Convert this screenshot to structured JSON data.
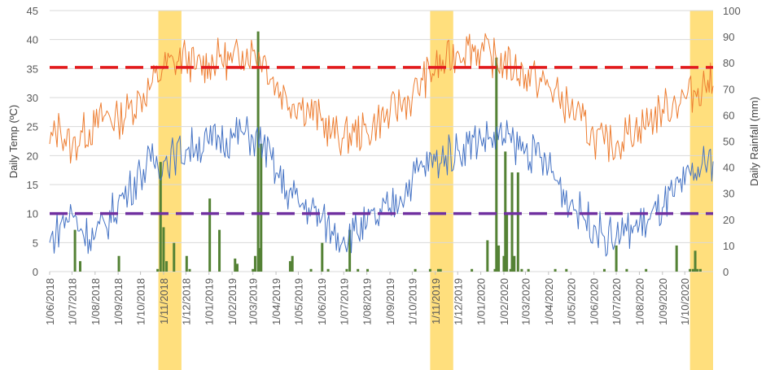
{
  "chart_data": {
    "type": "line",
    "ylabel": "Daily Temp (ºC)",
    "y2label": "Daily Rainfall (mm)",
    "ylim": [
      0,
      45
    ],
    "y2lim": [
      0,
      100
    ],
    "yticks": [
      0,
      5,
      10,
      15,
      20,
      25,
      30,
      35,
      40,
      45
    ],
    "y2ticks": [
      0,
      10,
      20,
      30,
      40,
      50,
      60,
      70,
      80,
      90,
      100
    ],
    "xlim": [
      "2018-06-01",
      "2020-11-08"
    ],
    "xtick_labels": [
      "1/06/2018",
      "1/07/2018",
      "1/08/2018",
      "1/09/2018",
      "1/10/2018",
      "1/11/2018",
      "1/12/2018",
      "1/01/2019",
      "1/02/2019",
      "1/03/2019",
      "1/04/2019",
      "1/05/2019",
      "1/06/2019",
      "1/07/2019",
      "1/08/2019",
      "1/09/2019",
      "1/10/2019",
      "1/11/2019",
      "1/12/2019",
      "1/01/2020",
      "1/02/2020",
      "1/03/2020",
      "1/04/2020",
      "1/05/2020",
      "1/06/2020",
      "1/07/2020",
      "1/08/2020",
      "1/09/2020",
      "1/10/2020"
    ],
    "grid": true,
    "highlight_periods": [
      {
        "start": "2018-10-25",
        "end": "2018-11-25",
        "color": "#FFD966"
      },
      {
        "start": "2019-10-25",
        "end": "2019-11-25",
        "color": "#FFD966"
      },
      {
        "start": "2020-10-08",
        "end": "2020-11-08",
        "color": "#FFD966"
      }
    ],
    "thresholds": [
      {
        "value": 35.2,
        "axis": "left",
        "color": "#E31A1C",
        "style": "dashed"
      },
      {
        "value": 10,
        "axis": "left",
        "color": "#7030A0",
        "style": "dashed"
      }
    ],
    "series": [
      {
        "kind": "line",
        "axis": "left",
        "color": "#ED7D31",
        "x": [
          "2018-06-01",
          "2018-06-15",
          "2018-07-01",
          "2018-07-15",
          "2018-08-01",
          "2018-08-15",
          "2018-09-01",
          "2018-09-15",
          "2018-10-01",
          "2018-10-15",
          "2018-11-01",
          "2018-11-15",
          "2018-12-01",
          "2018-12-15",
          "2019-01-01",
          "2019-01-15",
          "2019-02-01",
          "2019-02-15",
          "2019-03-01",
          "2019-03-15",
          "2019-04-01",
          "2019-04-15",
          "2019-05-01",
          "2019-05-15",
          "2019-06-01",
          "2019-06-15",
          "2019-07-01",
          "2019-07-15",
          "2019-08-01",
          "2019-08-15",
          "2019-09-01",
          "2019-09-15",
          "2019-10-01",
          "2019-10-15",
          "2019-11-01",
          "2019-11-15",
          "2019-12-01",
          "2019-12-15",
          "2020-01-01",
          "2020-01-15",
          "2020-02-01",
          "2020-02-15",
          "2020-03-01",
          "2020-03-15",
          "2020-04-01",
          "2020-04-15",
          "2020-05-01",
          "2020-05-15",
          "2020-06-01",
          "2020-06-15",
          "2020-07-01",
          "2020-07-15",
          "2020-08-01",
          "2020-08-15",
          "2020-09-01",
          "2020-09-15",
          "2020-10-01",
          "2020-10-15",
          "2020-11-01",
          "2020-11-08"
        ],
        "y": [
          22,
          25,
          21,
          24,
          25,
          27,
          26,
          28,
          30,
          32,
          35,
          36,
          37,
          35,
          36,
          37,
          36,
          38,
          38,
          37,
          32,
          30,
          29,
          28,
          26,
          24,
          23,
          24,
          24,
          26,
          27,
          29,
          30,
          33,
          35,
          36,
          38,
          39,
          38,
          37,
          36,
          35,
          34,
          33,
          32,
          30,
          28,
          26,
          23,
          22,
          22,
          24,
          25,
          26,
          28,
          29,
          30,
          31,
          33,
          32
        ]
      },
      {
        "kind": "line",
        "axis": "left",
        "color": "#4472C4",
        "x": [
          "2018-06-01",
          "2018-06-15",
          "2018-07-01",
          "2018-07-15",
          "2018-08-01",
          "2018-08-15",
          "2018-09-01",
          "2018-09-15",
          "2018-10-01",
          "2018-10-15",
          "2018-11-01",
          "2018-11-15",
          "2018-12-01",
          "2018-12-15",
          "2019-01-01",
          "2019-01-15",
          "2019-02-01",
          "2019-02-15",
          "2019-03-01",
          "2019-03-15",
          "2019-04-01",
          "2019-04-15",
          "2019-05-01",
          "2019-05-15",
          "2019-06-01",
          "2019-06-15",
          "2019-07-01",
          "2019-07-15",
          "2019-08-01",
          "2019-08-15",
          "2019-09-01",
          "2019-09-15",
          "2019-10-01",
          "2019-10-15",
          "2019-11-01",
          "2019-11-15",
          "2019-12-01",
          "2019-12-15",
          "2020-01-01",
          "2020-01-15",
          "2020-02-01",
          "2020-02-15",
          "2020-03-01",
          "2020-03-15",
          "2020-04-01",
          "2020-04-15",
          "2020-05-01",
          "2020-05-15",
          "2020-06-01",
          "2020-06-15",
          "2020-07-01",
          "2020-07-15",
          "2020-08-01",
          "2020-08-15",
          "2020-09-01",
          "2020-09-15",
          "2020-10-01",
          "2020-10-15",
          "2020-11-01",
          "2020-11-08"
        ],
        "y": [
          5,
          8,
          10,
          7,
          6,
          8,
          12,
          14,
          17,
          19,
          19,
          20,
          21,
          22,
          22,
          23,
          23,
          24,
          23,
          22,
          17,
          14,
          12,
          11,
          9,
          7,
          6,
          7,
          8,
          9,
          11,
          13,
          16,
          18,
          19,
          20,
          21,
          22,
          23,
          23,
          23,
          22,
          21,
          20,
          18,
          15,
          12,
          10,
          8,
          6,
          6,
          7,
          8,
          9,
          11,
          13,
          15,
          17,
          19,
          19
        ]
      },
      {
        "kind": "bar",
        "axis": "right",
        "color": "#548235",
        "x": [
          "2018-07-05",
          "2018-07-12",
          "2018-09-02",
          "2018-10-24",
          "2018-10-28",
          "2018-11-01",
          "2018-11-05",
          "2018-11-15",
          "2018-12-02",
          "2018-12-06",
          "2019-01-02",
          "2019-01-15",
          "2019-02-05",
          "2019-02-08",
          "2019-03-01",
          "2019-03-04",
          "2019-03-08",
          "2019-03-10",
          "2019-03-12",
          "2019-04-20",
          "2019-04-23",
          "2019-05-18",
          "2019-06-02",
          "2019-06-10",
          "2019-07-05",
          "2019-07-09",
          "2019-07-20",
          "2019-08-02",
          "2019-10-05",
          "2019-10-25",
          "2019-11-05",
          "2019-11-08",
          "2019-12-20",
          "2020-01-10",
          "2020-01-20",
          "2020-01-22",
          "2020-01-25",
          "2020-02-01",
          "2020-02-03",
          "2020-02-05",
          "2020-02-10",
          "2020-02-12",
          "2020-02-15",
          "2020-02-20",
          "2020-02-25",
          "2020-03-05",
          "2020-04-10",
          "2020-04-25",
          "2020-06-15",
          "2020-07-01",
          "2020-07-15",
          "2020-08-10",
          "2020-09-20",
          "2020-10-08",
          "2020-10-12",
          "2020-10-15",
          "2020-10-18",
          "2020-10-22"
        ],
        "y": [
          16,
          4,
          6,
          1,
          42,
          17,
          4,
          11,
          6,
          1,
          28,
          16,
          5,
          3,
          1,
          6,
          92,
          9,
          49,
          4,
          6,
          1,
          11,
          1,
          1,
          16,
          1,
          1,
          1,
          1,
          1,
          1,
          1,
          12,
          1,
          82,
          10,
          6,
          46,
          22,
          1,
          38,
          6,
          38,
          1,
          1,
          1,
          1,
          1,
          10,
          1,
          1,
          10,
          1,
          1,
          8,
          1,
          1
        ]
      }
    ]
  }
}
